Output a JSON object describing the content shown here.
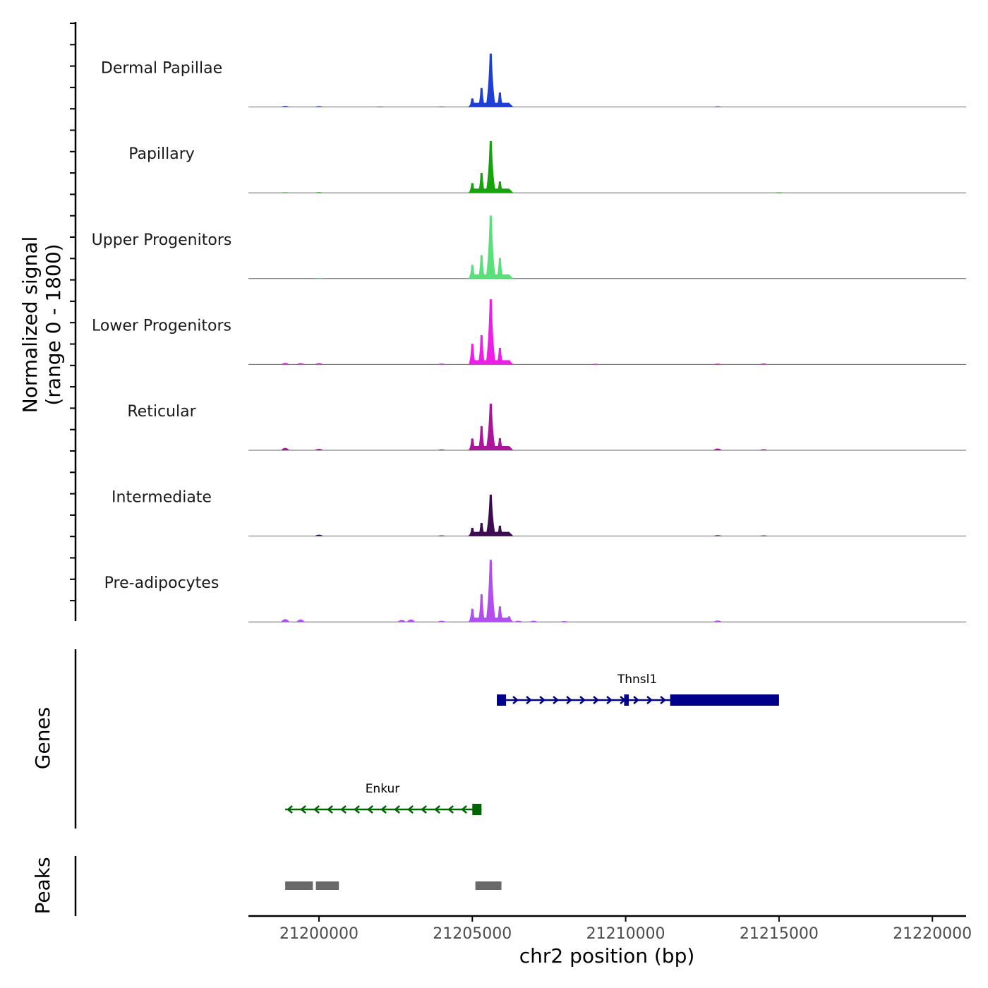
{
  "chart_data": {
    "type": "area",
    "title": "",
    "region": {
      "chromosome": "chr2",
      "start": 21197700,
      "end": 21221100
    },
    "xlabel": "chr2 position (bp)",
    "ylabel_line1": "Normalized signal",
    "ylabel_line2": "(range 0 - 1800)",
    "ylim": [
      0,
      1800
    ],
    "x_ticks": [
      21200000,
      21205000,
      21210000,
      21215000,
      21220000
    ],
    "x_tick_labels": [
      "21200000",
      "21205000",
      "21210000",
      "21215000",
      "21220000"
    ],
    "signal_peaks": [
      21205000,
      21205300,
      21205600,
      21205900,
      21206200
    ],
    "tracks": [
      {
        "name": "Dermal Papillae",
        "color": "#1e3fd6",
        "values": [
          250,
          550,
          1550,
          420,
          60
        ],
        "background": [
          [
            21198900,
            30
          ],
          [
            21200000,
            25
          ],
          [
            21202000,
            15
          ],
          [
            21204000,
            15
          ],
          [
            21213000,
            20
          ]
        ]
      },
      {
        "name": "Papillary",
        "color": "#16a30e",
        "values": [
          280,
          580,
          1500,
          330,
          40
        ],
        "background": [
          [
            21198900,
            15
          ],
          [
            21200000,
            20
          ],
          [
            21215000,
            15
          ]
        ]
      },
      {
        "name": "Upper Progenitors",
        "color": "#5ae07a",
        "values": [
          400,
          680,
          1830,
          600,
          60
        ],
        "background": [
          [
            21200000,
            12
          ]
        ]
      },
      {
        "name": "Lower Progenitors",
        "color": "#ee1ee8",
        "values": [
          600,
          850,
          1890,
          480,
          120
        ],
        "background": [
          [
            21198900,
            45
          ],
          [
            21199400,
            40
          ],
          [
            21200000,
            40
          ],
          [
            21204000,
            25
          ],
          [
            21209000,
            20
          ],
          [
            21213000,
            25
          ],
          [
            21214500,
            30
          ]
        ]
      },
      {
        "name": "Reticular",
        "color": "#aa1599",
        "values": [
          340,
          700,
          1350,
          350,
          50
        ],
        "background": [
          [
            21198900,
            70
          ],
          [
            21200000,
            40
          ],
          [
            21204000,
            25
          ],
          [
            21213000,
            50
          ],
          [
            21214500,
            30
          ]
        ]
      },
      {
        "name": "Intermediate",
        "color": "#3c0b52",
        "values": [
          240,
          380,
          1200,
          300,
          40
        ],
        "background": [
          [
            21200000,
            40
          ],
          [
            21204000,
            20
          ],
          [
            21213000,
            25
          ],
          [
            21214500,
            20
          ]
        ]
      },
      {
        "name": "Pre-adipocytes",
        "color": "#b24ef0",
        "values": [
          380,
          800,
          1800,
          450,
          160
        ],
        "background": [
          [
            21198900,
            80
          ],
          [
            21199400,
            70
          ],
          [
            21202700,
            55
          ],
          [
            21203000,
            70
          ],
          [
            21204000,
            35
          ],
          [
            21206500,
            35
          ],
          [
            21207000,
            35
          ],
          [
            21208000,
            25
          ],
          [
            21213000,
            40
          ]
        ]
      }
    ],
    "genes_label": "Genes",
    "genes": [
      {
        "name": "Thnsl1",
        "strand": "+",
        "start": 21205800,
        "end": 21215000,
        "color": "#00008b",
        "exons": [
          [
            21205800,
            21206100
          ],
          [
            21209950,
            21210100
          ],
          [
            21211450,
            21215000
          ]
        ]
      },
      {
        "name": "Enkur",
        "strand": "-",
        "start": 21198900,
        "end": 21205300,
        "color": "#006400",
        "exons": [
          [
            21205000,
            21205300
          ]
        ]
      }
    ],
    "peaks_label": "Peaks",
    "peaks": [
      [
        21198900,
        21199800
      ],
      [
        21199900,
        21200650
      ],
      [
        21205100,
        21205950
      ]
    ],
    "peak_color": "#696969"
  }
}
